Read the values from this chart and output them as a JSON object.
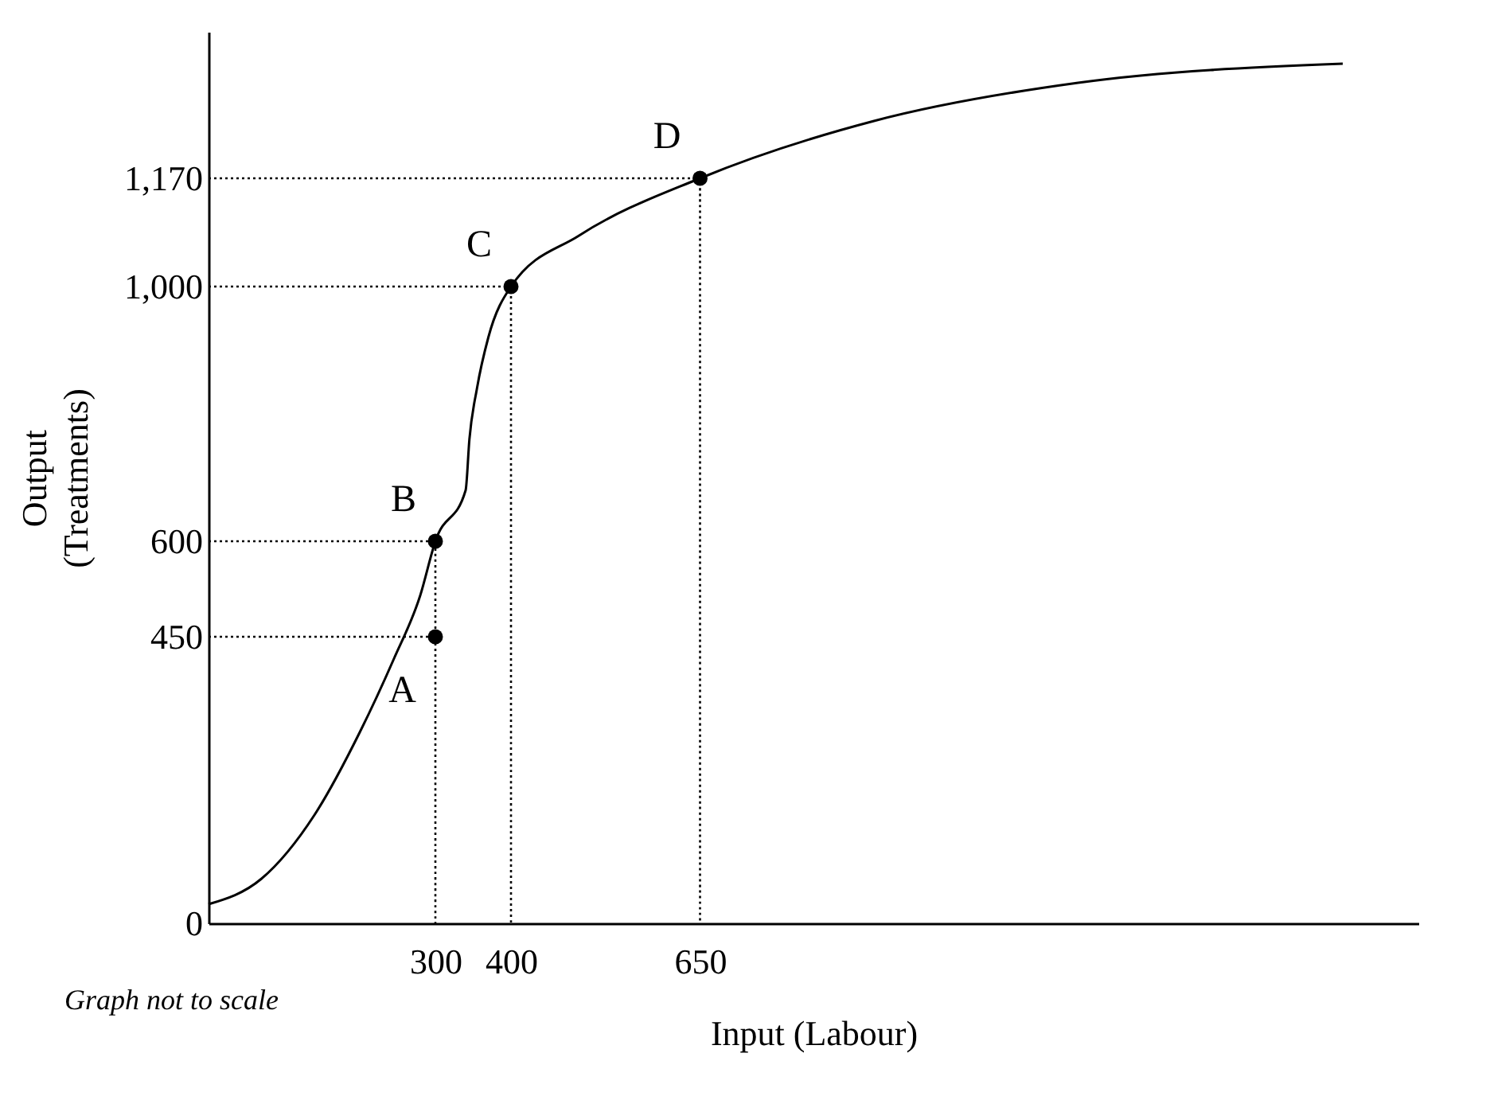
{
  "chart_data": {
    "type": "line",
    "xlabel": "Input (Labour)",
    "ylabel": "Output\n(Treatments)",
    "annotations": [
      "Graph not to scale",
      {
        "text": "A",
        "x": 300,
        "y": 450
      },
      {
        "text": "B",
        "x": 300,
        "y": 600
      },
      {
        "text": "C",
        "x": 400,
        "y": 1000
      },
      {
        "text": "D",
        "x": 650,
        "y": 1170
      }
    ],
    "xlim": [
      0,
      1600
    ],
    "ylim": [
      0,
      1400
    ],
    "xticks": [
      300,
      400,
      650
    ],
    "yticks": [
      0,
      450,
      600,
      {
        "value": 1000,
        "label": "1,000"
      },
      {
        "value": 1170,
        "label": "1,170"
      }
    ],
    "grid": false,
    "series": [
      {
        "color": "#000000",
        "line_style": "solid",
        "marker": "none",
        "x": [
          0,
          70,
          140,
          200,
          245,
          280,
          300,
          340,
          345,
          355,
          370,
          400,
          490,
          650,
          880,
          1150,
          1500
        ],
        "values": [
          30,
          70,
          170,
          300,
          415,
          515,
          600,
          680,
          760,
          840,
          920,
          1000,
          1080,
          1170,
          1260,
          1320,
          1350
        ]
      },
      {
        "color": "#000000",
        "line_style": "dotted",
        "marker": "none",
        "x": [
          0,
          300,
          300
        ],
        "values": [
          600,
          600,
          0
        ]
      },
      {
        "color": "#000000",
        "line_style": "dotted",
        "marker": "none",
        "x": [
          0,
          300
        ],
        "values": [
          450,
          450
        ]
      },
      {
        "color": "#000000",
        "line_style": "dotted",
        "marker": "none",
        "x": [
          0,
          400,
          400
        ],
        "values": [
          1000,
          1000,
          0
        ]
      },
      {
        "color": "#000000",
        "line_style": "dotted",
        "marker": "none",
        "x": [
          0,
          650,
          650
        ],
        "values": [
          1170,
          1170,
          0
        ]
      },
      {
        "type": "scatter",
        "color": "#000000",
        "marker": "circle",
        "x": [
          300,
          300,
          400,
          650
        ],
        "values": [
          450,
          600,
          1000,
          1170
        ]
      }
    ]
  }
}
